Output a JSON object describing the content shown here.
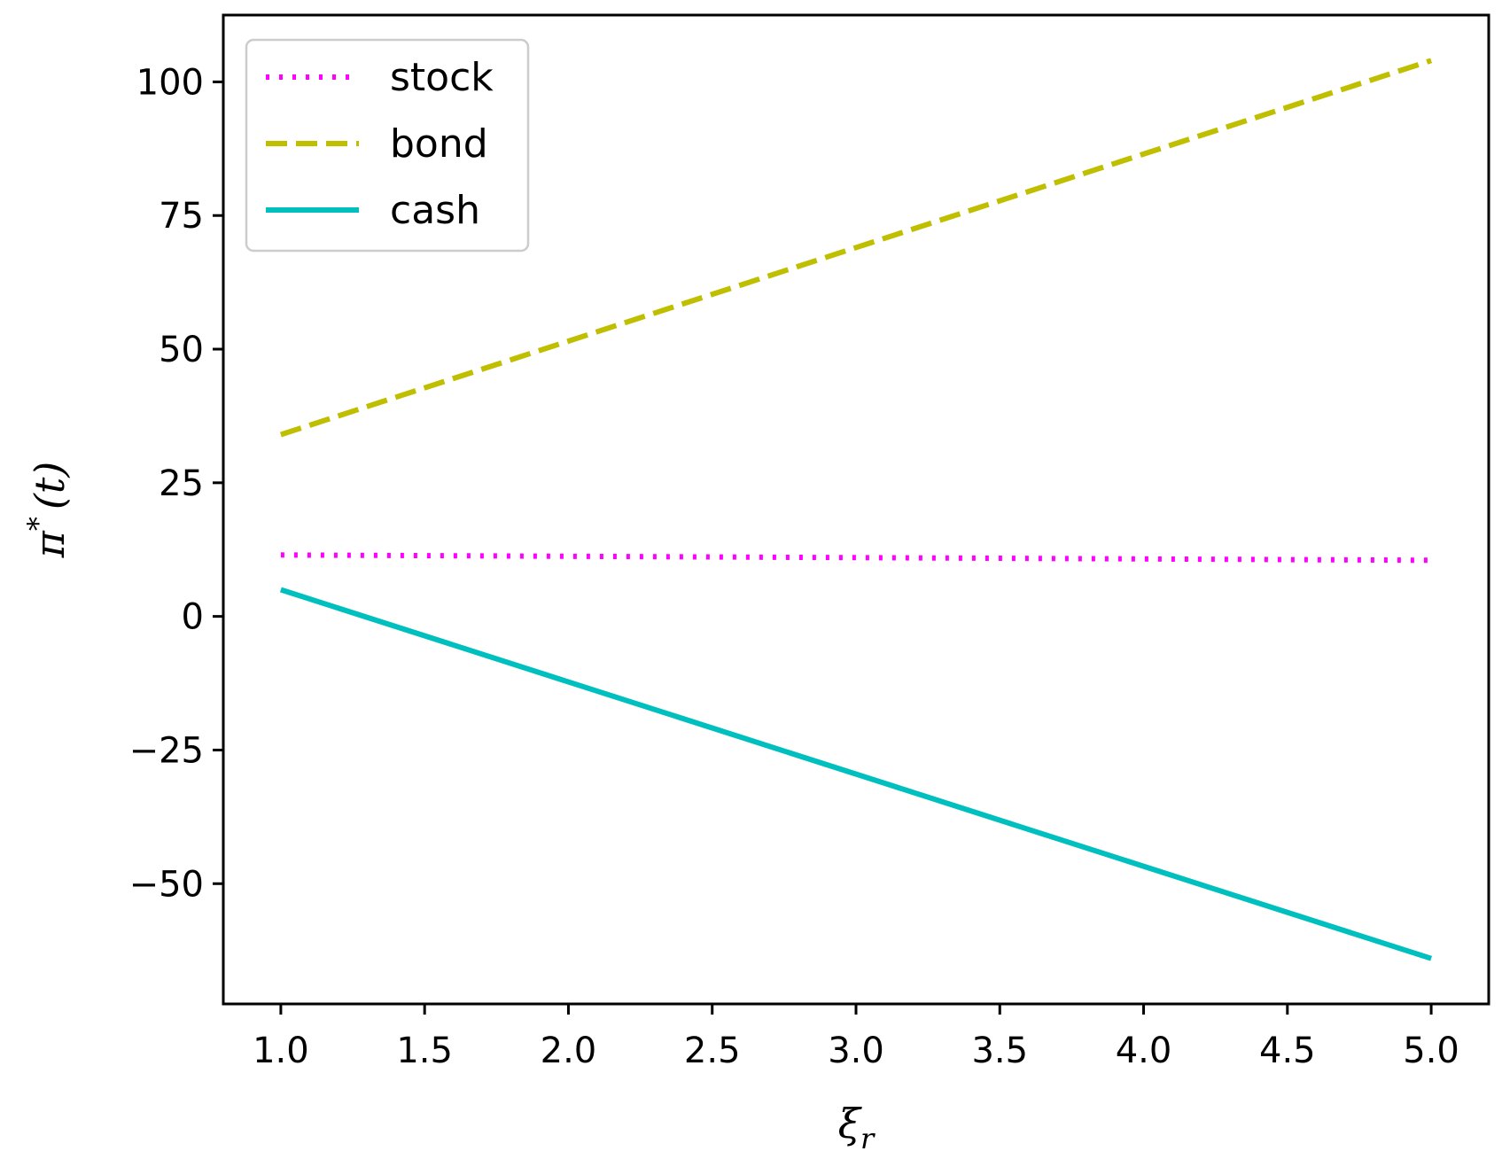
{
  "chart_data": {
    "type": "line",
    "x": [
      1.0,
      5.0
    ],
    "series": [
      {
        "name": "stock",
        "values": [
          11.5,
          10.5
        ],
        "color": "#ff00ff",
        "linestyle": "dotted"
      },
      {
        "name": "bond",
        "values": [
          34,
          104
        ],
        "color": "#bfbf00",
        "linestyle": "dashed"
      },
      {
        "name": "cash",
        "values": [
          5,
          -64
        ],
        "color": "#00bfbf",
        "linestyle": "solid"
      }
    ],
    "xlabel_main": "ξ",
    "xlabel_sub": "r",
    "ylabel_main": "π",
    "ylabel_sup": "*",
    "ylabel_arg": "(t)",
    "xticks": [
      "1.0",
      "1.5",
      "2.0",
      "2.5",
      "3.0",
      "3.5",
      "4.0",
      "4.5",
      "5.0"
    ],
    "xtick_values": [
      1.0,
      1.5,
      2.0,
      2.5,
      3.0,
      3.5,
      4.0,
      4.5,
      5.0
    ],
    "yticks": [
      "100",
      "75",
      "50",
      "25",
      "0",
      "−25",
      "−50"
    ],
    "ytick_values": [
      100,
      75,
      50,
      25,
      0,
      -25,
      -50
    ],
    "xlim": [
      0.8,
      5.2
    ],
    "ylim": [
      -72.5,
      112.5
    ],
    "grid": false,
    "legend": "top-left"
  }
}
